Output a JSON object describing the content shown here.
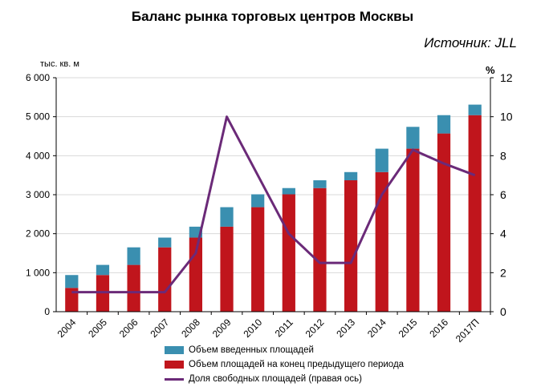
{
  "header": {
    "title": "Баланс рынка торговых центров Москвы",
    "source": "Источник: JLL"
  },
  "colors": {
    "prev_stock": "#c0151c",
    "new_supply": "#3a8fb0",
    "vacancy_line": "#6b2a78",
    "grid": "#d9d9d9"
  },
  "chart_data": {
    "type": "bar",
    "stacked": true,
    "categories": [
      "2004",
      "2005",
      "2006",
      "2007",
      "2008",
      "2009",
      "2010",
      "2011",
      "2012",
      "2013",
      "2014",
      "2015",
      "2016",
      "2017П"
    ],
    "series": [
      {
        "name": "Объем площадей на конец предыдущего периода",
        "axis": "left",
        "values": [
          610,
          940,
          1200,
          1650,
          1900,
          2180,
          2680,
          3010,
          3170,
          3370,
          3580,
          4180,
          4570,
          5040
        ]
      },
      {
        "name": "Объем введенных площадей",
        "axis": "left",
        "values": [
          330,
          260,
          450,
          250,
          280,
          500,
          330,
          160,
          200,
          210,
          600,
          560,
          470,
          270
        ]
      },
      {
        "name": "Доля свободных площадей (правая ось)",
        "axis": "right",
        "type": "line",
        "values": [
          1.0,
          1.0,
          1.0,
          1.0,
          3.0,
          10.0,
          7.0,
          4.0,
          2.5,
          2.5,
          6.0,
          8.3,
          7.6,
          7.0
        ]
      }
    ],
    "y_left": {
      "label": "тыс. кв. м",
      "min": 0,
      "max": 6000,
      "ticks": [
        "0",
        "1 000",
        "2 000",
        "3 000",
        "4 000",
        "5 000",
        "6 000"
      ]
    },
    "y_right": {
      "label": "%",
      "min": 0,
      "max": 12,
      "ticks": [
        "0",
        "2",
        "4",
        "6",
        "8",
        "10",
        "12"
      ]
    },
    "grid": true,
    "legend_position": "bottom"
  },
  "legend": {
    "items": [
      "Объем введенных площадей",
      "Объем площадей на конец предыдущего периода",
      "Доля свободных площадей (правая ось)"
    ]
  }
}
